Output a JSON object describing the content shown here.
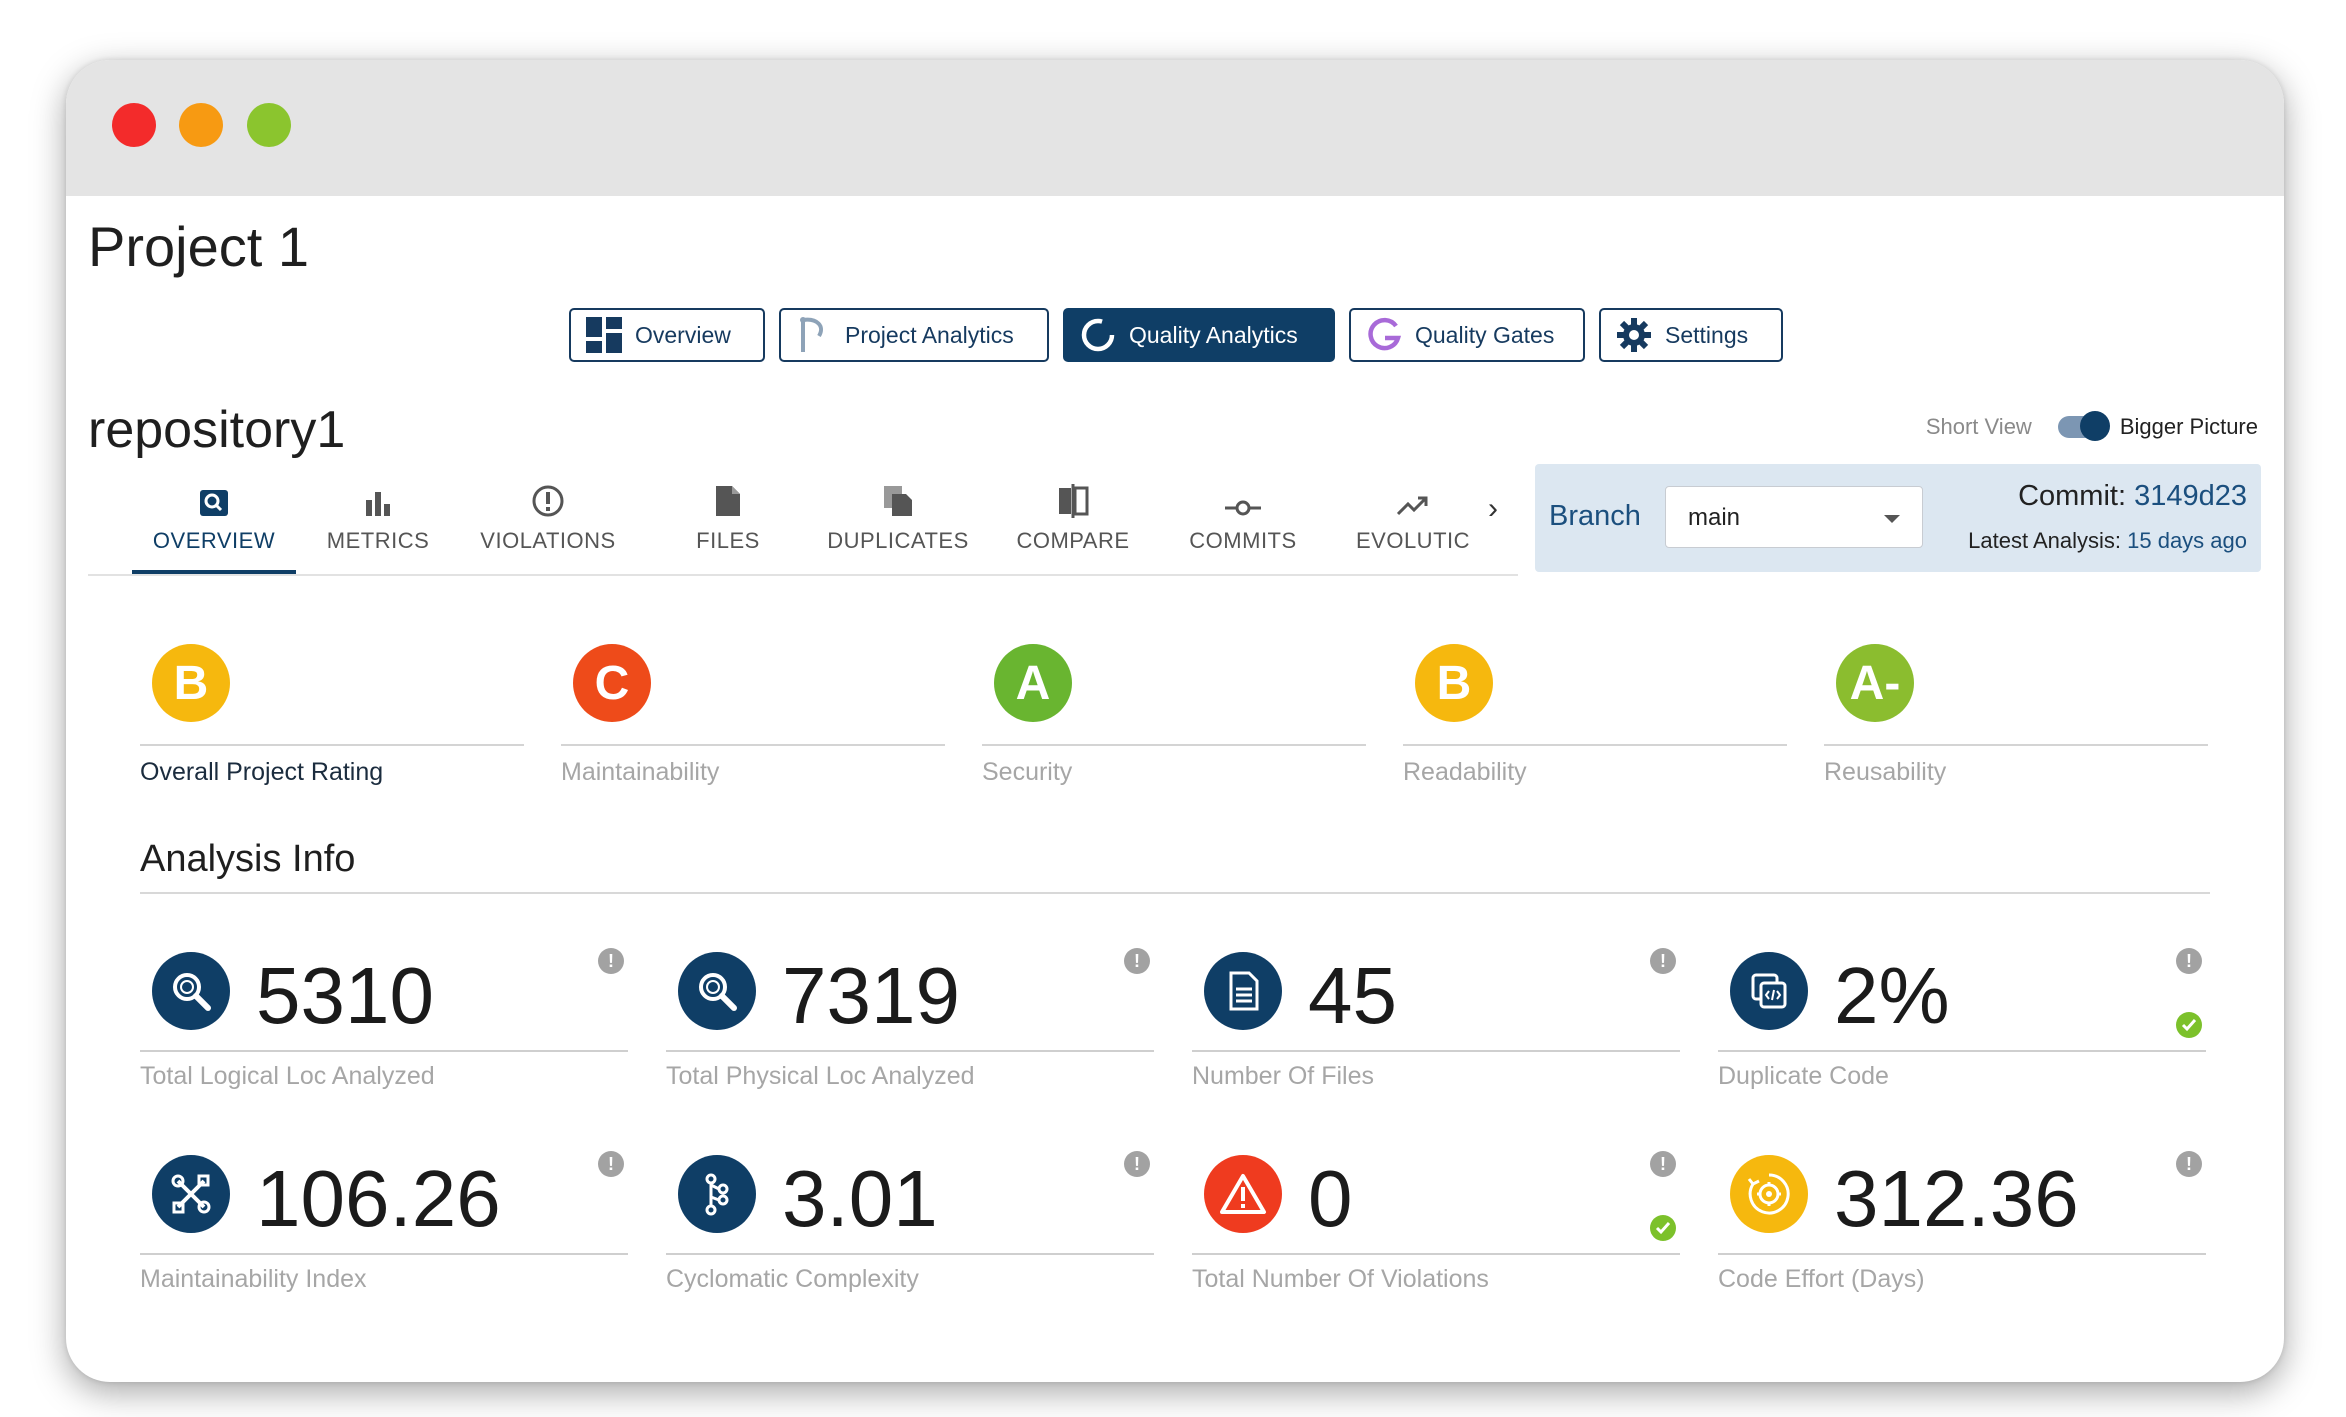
{
  "project": {
    "title": "Project 1"
  },
  "nav": [
    {
      "label": "Overview"
    },
    {
      "label": "Project Analytics"
    },
    {
      "label": "Quality Analytics"
    },
    {
      "label": "Quality Gates"
    },
    {
      "label": "Settings"
    }
  ],
  "repository": {
    "title": "repository1"
  },
  "view_toggle": {
    "short_label": "Short View",
    "big_label": "Bigger Picture"
  },
  "tabs": [
    {
      "label": "OVERVIEW"
    },
    {
      "label": "METRICS"
    },
    {
      "label": "VIOLATIONS"
    },
    {
      "label": "FILES"
    },
    {
      "label": "DUPLICATES"
    },
    {
      "label": "COMPARE"
    },
    {
      "label": "COMMITS"
    },
    {
      "label": "EVOLUTIC"
    }
  ],
  "branch": {
    "label": "Branch",
    "selected": "main",
    "commit_label": "Commit:",
    "commit_hash": "3149d23",
    "latest_label": "Latest Analysis:",
    "latest_value": "15 days ago"
  },
  "ratings": [
    {
      "grade": "B",
      "label": "Overall Project Rating",
      "color": "#f6b80e"
    },
    {
      "grade": "C",
      "label": "Maintainability",
      "color": "#ee4b1a"
    },
    {
      "grade": "A",
      "label": "Security",
      "color": "#69b530"
    },
    {
      "grade": "B",
      "label": "Readability",
      "color": "#f6b80e"
    },
    {
      "grade": "A-",
      "label": "Reusability",
      "color": "#8bbd2f"
    }
  ],
  "analysis": {
    "title": "Analysis Info",
    "metrics": [
      {
        "value": "5310",
        "label": "Total Logical Loc Analyzed",
        "icon": "magnifier-icon"
      },
      {
        "value": "7319",
        "label": "Total Physical Loc Analyzed",
        "icon": "magnifier-icon"
      },
      {
        "value": "45",
        "label": "Number Of Files",
        "icon": "document-icon"
      },
      {
        "value": "2%",
        "label": "Duplicate Code",
        "icon": "duplicate-code-icon",
        "status": "ok"
      },
      {
        "value": "106.26",
        "label": "Maintainability Index",
        "icon": "tools-icon"
      },
      {
        "value": "3.01",
        "label": "Cyclomatic Complexity",
        "icon": "flow-icon"
      },
      {
        "value": "0",
        "label": "Total Number Of Violations",
        "icon": "warning-icon",
        "status": "ok"
      },
      {
        "value": "312.36",
        "label": "Code Effort (Days)",
        "icon": "effort-icon"
      }
    ]
  },
  "colors": {
    "navy": "#0f3e66",
    "accent_blue": "#1b4f7e",
    "panel_bg": "#dce7f1",
    "success_green": "#7cc12b",
    "warning_red": "#ef3b1f",
    "effort_yellow": "#f6b80e"
  }
}
